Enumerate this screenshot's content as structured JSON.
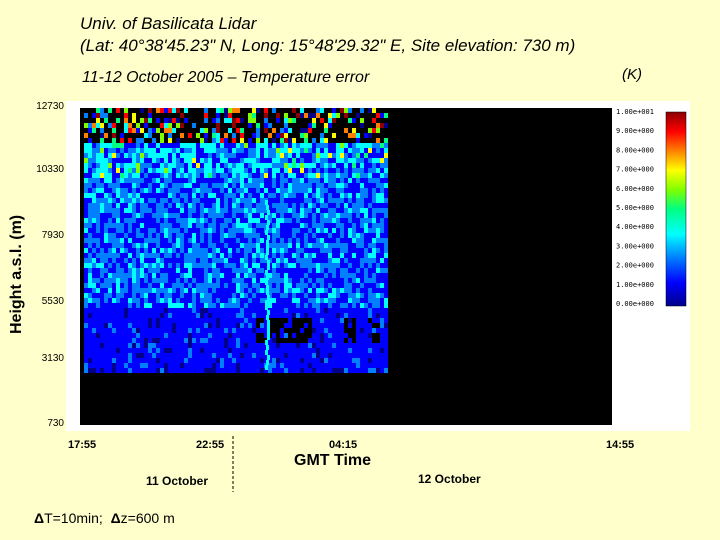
{
  "title_line1": "Univ. of Basilicata Lidar",
  "title_line2": "(Lat: 40°38'45.23\" N, Long: 15°48'29.32\" E, Site elevation: 730 m)",
  "subtitle": "11-12 October 2005 – Temperature error",
  "unit": "(K)",
  "footer": {
    "delta_t": "T=10min;",
    "delta_z": "z=600 m",
    "delta_symbol": "Δ"
  },
  "chart_data": {
    "type": "heatmap",
    "title": "11-12 October 2005 – Temperature error",
    "xlabel": "GMT Time",
    "ylabel": "Height a.s.l. (m)",
    "x_ticks": [
      "17:55",
      "22:55",
      "04:15",
      "14:55"
    ],
    "y_ticks": [
      12730,
      10330,
      7930,
      5530,
      3130,
      730
    ],
    "ylim": [
      730,
      12730
    ],
    "x_range": [
      "17:55",
      "14:55"
    ],
    "day_labels": [
      "11 October",
      "12 October"
    ],
    "colorbar": {
      "unit": "(K)",
      "range": [
        0,
        10
      ],
      "tick_labels": [
        "1.00e+001",
        "9.00e+000",
        "8.00e+000",
        "7.00e+000",
        "6.00e+000",
        "5.00e+000",
        "4.00e+000",
        "3.00e+000",
        "2.00e+000",
        "1.00e+000",
        "0.00e+000"
      ],
      "colormap": [
        "#00008b",
        "#0000ff",
        "#0080ff",
        "#00ffff",
        "#00ff80",
        "#80ff00",
        "#ffff00",
        "#ff8000",
        "#ff0000",
        "#8b0000"
      ]
    },
    "data_extent": {
      "time_start": "17:55",
      "time_end_approx": "02:55",
      "height_bottom_m": 2700,
      "height_top_m": 12730
    }
  }
}
